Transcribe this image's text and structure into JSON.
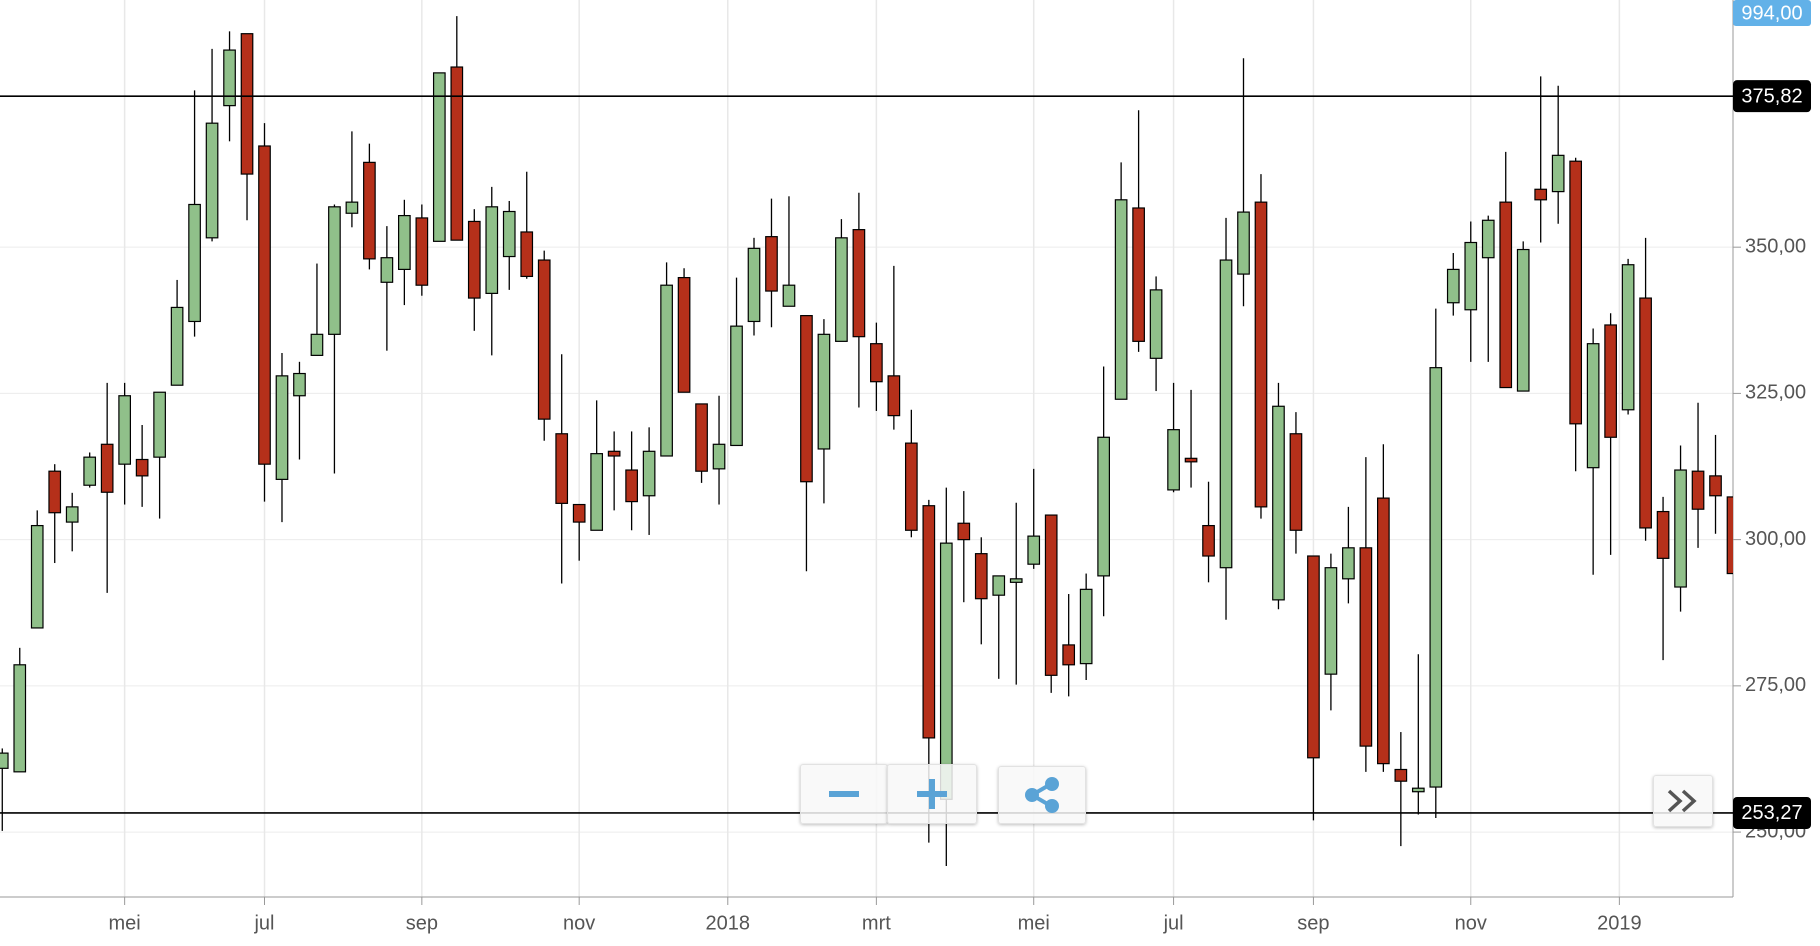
{
  "chart_data": {
    "type": "candlestick",
    "up_color": "#90c08a",
    "down_color": "#b5301a",
    "xlim": [
      -0.13,
      99
    ],
    "xticks": [
      {
        "value": 7,
        "label": "mei"
      },
      {
        "value": 15,
        "label": "jul"
      },
      {
        "value": 24,
        "label": "sep"
      },
      {
        "value": 33,
        "label": "nov"
      },
      {
        "value": 41.5,
        "label": "2018"
      },
      {
        "value": 50,
        "label": "mrt"
      },
      {
        "value": 59,
        "label": "mei"
      },
      {
        "value": 67,
        "label": "jul"
      },
      {
        "value": 75,
        "label": "sep"
      },
      {
        "value": 84,
        "label": "nov"
      },
      {
        "value": 92.5,
        "label": "2019"
      }
    ],
    "ylim": [
      238.9,
      392.26
    ],
    "yticks": [
      {
        "value": 250,
        "label": "250,00"
      },
      {
        "value": 275,
        "label": "275,00"
      },
      {
        "value": 300,
        "label": "300,00"
      },
      {
        "value": 325,
        "label": "325,00"
      },
      {
        "value": 350,
        "label": "350,00"
      }
    ],
    "grid": true,
    "hlines": [
      {
        "value": 375.82,
        "label": "375,82"
      },
      {
        "value": 253.27,
        "label": "253,27"
      }
    ],
    "price_badge": "994,00",
    "open": [
      260.9,
      260.3,
      284.9,
      311.7,
      303,
      309.3,
      316.3,
      312.9,
      313.7,
      314.1,
      326.4,
      337.3,
      351.6,
      374.2,
      386.5,
      367.3,
      310.3,
      324.6,
      331.5,
      335.1,
      355.8,
      364.5,
      344,
      346.2,
      355,
      351,
      380.8,
      354.4,
      342.1,
      348.4,
      352.6,
      347.8,
      318.1,
      306,
      301.6,
      315.1,
      311.9,
      307.5,
      314.3,
      344.8,
      323.2,
      312.1,
      316.1,
      337.3,
      351.8,
      339.9,
      338.3,
      315.5,
      333.9,
      353,
      333.5,
      328,
      316.5,
      305.8,
      255.6,
      302.8,
      297.6,
      290.5,
      292.7,
      295.8,
      304.2,
      282,
      278.8,
      293.8,
      324,
      356.7,
      331,
      308.5,
      313.9,
      302.4,
      295.2,
      345.4,
      357.7,
      289.7,
      318.1,
      297.2,
      277,
      293.3,
      298.6,
      307.1,
      260.7,
      256.9,
      257.7,
      340.5,
      339.3,
      348.2,
      357.7,
      325.4,
      359.9,
      359.5,
      364.7,
      312.3,
      336.7,
      322.2,
      341.3,
      304.8,
      291.9,
      311.7,
      310.9,
      307.3
    ],
    "high": [
      264.3,
      281.5,
      305,
      312.9,
      308,
      314.9,
      326.8,
      326.8,
      319.6,
      325.2,
      344.4,
      376.8,
      383.9,
      386.9,
      386.5,
      371.2,
      331.9,
      330.4,
      347.2,
      357.3,
      369.8,
      367.7,
      353.6,
      358.1,
      357.3,
      379.8,
      389.5,
      356.5,
      360.3,
      357.9,
      362.9,
      349.4,
      331.7,
      306,
      323.8,
      318.5,
      318.5,
      319.2,
      347.4,
      346.4,
      323.2,
      324.6,
      344.8,
      351.6,
      358.3,
      358.7,
      338.3,
      337.7,
      354.8,
      359.3,
      337.1,
      346.8,
      322.2,
      306.8,
      308.9,
      308.3,
      300.4,
      293.8,
      306.3,
      312.1,
      304.2,
      290.7,
      294.2,
      329.6,
      364.5,
      373.4,
      345,
      326.8,
      325.6,
      309.9,
      355,
      382.3,
      362.5,
      326.8,
      321.8,
      297.2,
      297.6,
      305.6,
      314.1,
      316.3,
      267.1,
      280.4,
      339.5,
      349,
      354.4,
      355.4,
      366.3,
      351,
      379.2,
      377.6,
      365.3,
      336.1,
      338.7,
      348,
      351.6,
      307.3,
      316.1,
      323.4,
      317.9,
      307.3
    ],
    "low": [
      250.2,
      260.3,
      284.9,
      296,
      298,
      308.9,
      290.9,
      306,
      305.6,
      303.6,
      326.4,
      334.7,
      351,
      368.1,
      354.6,
      306.5,
      303,
      313.7,
      331.5,
      311.3,
      353.4,
      346.2,
      332.3,
      340.1,
      341.7,
      351,
      351.2,
      335.7,
      331.5,
      342.7,
      344.6,
      316.9,
      292.5,
      296.4,
      301.6,
      305,
      301.6,
      300.8,
      314.3,
      325.2,
      309.7,
      306,
      316.1,
      334.9,
      336.3,
      339.9,
      294.6,
      306.2,
      333.9,
      322.6,
      322,
      318.8,
      300.4,
      248.2,
      244.2,
      289.3,
      282.1,
      276.2,
      275.2,
      295,
      273.8,
      273.2,
      276,
      286.9,
      324,
      332.1,
      325.4,
      308.1,
      308.9,
      292.7,
      286.3,
      339.9,
      303.6,
      288.1,
      297.6,
      252,
      270.8,
      289.1,
      260.3,
      260.3,
      247.6,
      253,
      252.4,
      338.3,
      330.4,
      330.4,
      326,
      325.4,
      350.8,
      354,
      311.7,
      294,
      297.4,
      321.4,
      299.8,
      279.4,
      287.7,
      298.6,
      301,
      294.2
    ],
    "close": [
      263.5,
      278.6,
      302.4,
      304.6,
      305.6,
      314.1,
      308.1,
      324.6,
      310.9,
      325.2,
      339.7,
      357.3,
      371.2,
      383.7,
      362.5,
      312.9,
      328,
      328.4,
      335.1,
      356.9,
      357.7,
      348,
      348.2,
      355.4,
      343.5,
      379.8,
      351.2,
      341.3,
      356.9,
      356.1,
      345,
      320.6,
      306.2,
      303,
      314.7,
      314.3,
      306.5,
      315.1,
      343.5,
      325.2,
      311.7,
      316.3,
      336.5,
      349.8,
      342.5,
      343.5,
      309.9,
      335.1,
      351.6,
      334.7,
      327,
      321.2,
      301.6,
      266.1,
      299.4,
      300,
      289.9,
      293.8,
      293.3,
      300.6,
      276.8,
      278.6,
      291.5,
      317.5,
      358.1,
      333.9,
      342.7,
      318.8,
      313.3,
      297.2,
      347.8,
      356,
      305.6,
      322.8,
      301.6,
      262.7,
      295.2,
      298.6,
      264.7,
      261.7,
      258.7,
      257.5,
      329.4,
      346.2,
      350.8,
      354.6,
      326,
      349.6,
      358.1,
      365.7,
      319.8,
      333.5,
      317.5,
      347,
      302,
      296.8,
      311.9,
      305.2,
      307.5,
      294.2
    ]
  }
}
